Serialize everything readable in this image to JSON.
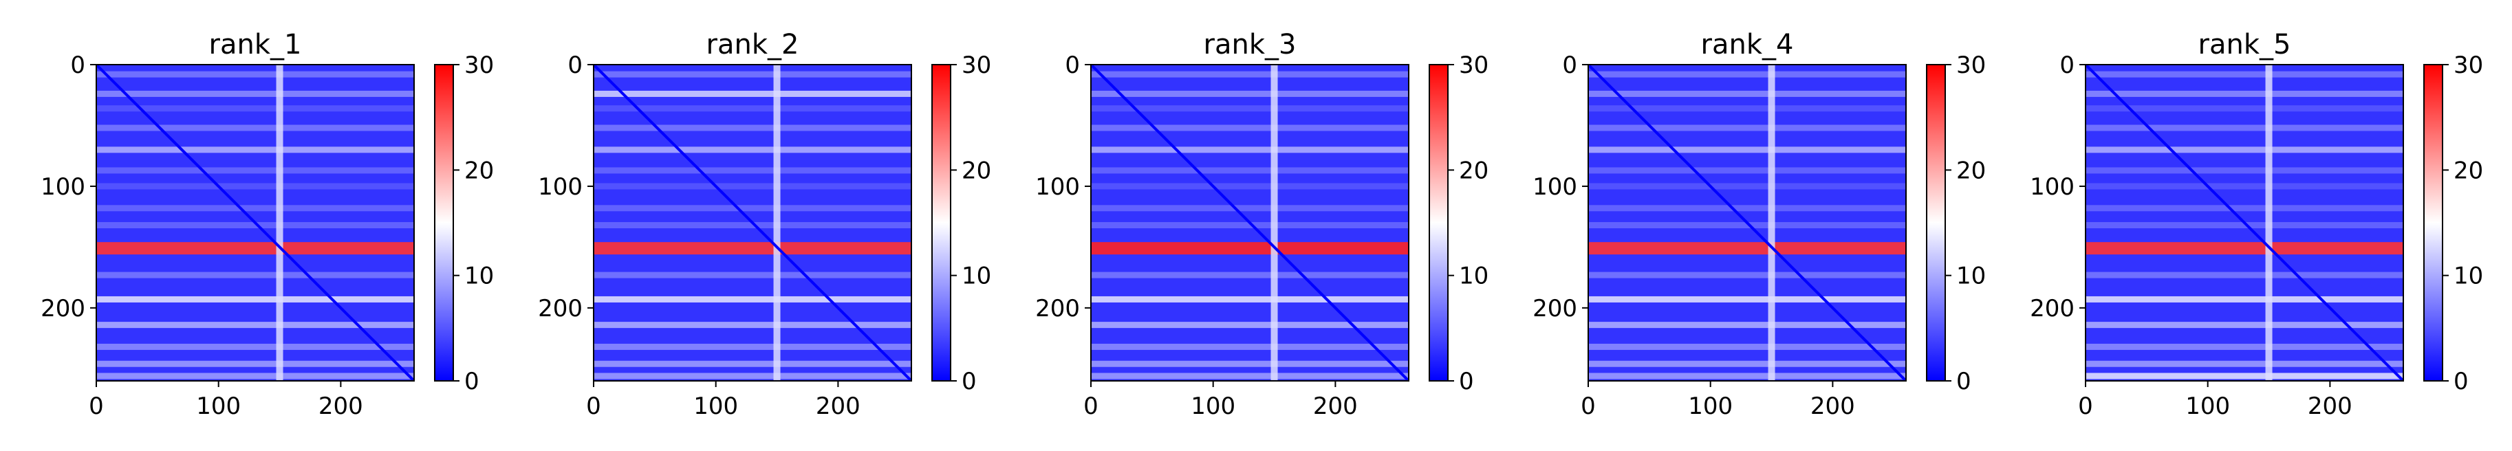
{
  "chart_data": [
    {
      "type": "heatmap",
      "title": "rank_1",
      "xticks": [
        0,
        100,
        200
      ],
      "yticks": [
        0,
        100,
        200
      ],
      "xlim": [
        0,
        260
      ],
      "ylim": [
        260,
        0
      ],
      "colorbar": {
        "ticks": [
          0,
          10,
          20,
          30
        ],
        "range": [
          0,
          30
        ],
        "colormap": "bwr"
      },
      "background_value": 3,
      "diagonal_value": 0,
      "vertical_line": {
        "x": 150,
        "value": 13
      },
      "horizontal_bands": [
        {
          "y": 8,
          "value": 7
        },
        {
          "y": 24,
          "value": 8
        },
        {
          "y": 36,
          "value": 5
        },
        {
          "y": 52,
          "value": 7
        },
        {
          "y": 70,
          "value": 10
        },
        {
          "y": 87,
          "value": 6
        },
        {
          "y": 100,
          "value": 5
        },
        {
          "y": 118,
          "value": 6
        },
        {
          "y": 132,
          "value": 6
        },
        {
          "y": 151,
          "value": 27
        },
        {
          "y": 173,
          "value": 7
        },
        {
          "y": 193,
          "value": 13
        },
        {
          "y": 214,
          "value": 10
        },
        {
          "y": 232,
          "value": 8
        },
        {
          "y": 246,
          "value": 9
        },
        {
          "y": 256,
          "value": 9
        }
      ]
    },
    {
      "type": "heatmap",
      "title": "rank_2",
      "xticks": [
        0,
        100,
        200
      ],
      "yticks": [
        0,
        100,
        200
      ],
      "xlim": [
        0,
        260
      ],
      "ylim": [
        260,
        0
      ],
      "colorbar": {
        "ticks": [
          0,
          10,
          20,
          30
        ],
        "range": [
          0,
          30
        ],
        "colormap": "bwr"
      },
      "background_value": 3,
      "diagonal_value": 0,
      "vertical_line": {
        "x": 150,
        "value": 13
      },
      "horizontal_bands": [
        {
          "y": 8,
          "value": 7
        },
        {
          "y": 24,
          "value": 12
        },
        {
          "y": 36,
          "value": 5
        },
        {
          "y": 52,
          "value": 7
        },
        {
          "y": 70,
          "value": 10
        },
        {
          "y": 87,
          "value": 6
        },
        {
          "y": 100,
          "value": 5
        },
        {
          "y": 118,
          "value": 6
        },
        {
          "y": 132,
          "value": 6
        },
        {
          "y": 151,
          "value": 27
        },
        {
          "y": 173,
          "value": 7
        },
        {
          "y": 193,
          "value": 13
        },
        {
          "y": 214,
          "value": 10
        },
        {
          "y": 232,
          "value": 8
        },
        {
          "y": 246,
          "value": 9
        },
        {
          "y": 256,
          "value": 9
        }
      ]
    },
    {
      "type": "heatmap",
      "title": "rank_3",
      "xticks": [
        0,
        100,
        200
      ],
      "yticks": [
        0,
        100,
        200
      ],
      "xlim": [
        0,
        260
      ],
      "ylim": [
        260,
        0
      ],
      "colorbar": {
        "ticks": [
          0,
          10,
          20,
          30
        ],
        "range": [
          0,
          30
        ],
        "colormap": "bwr"
      },
      "background_value": 3,
      "diagonal_value": 0,
      "vertical_line": {
        "x": 150,
        "value": 13
      },
      "horizontal_bands": [
        {
          "y": 8,
          "value": 7
        },
        {
          "y": 24,
          "value": 8
        },
        {
          "y": 36,
          "value": 5
        },
        {
          "y": 52,
          "value": 7
        },
        {
          "y": 70,
          "value": 10
        },
        {
          "y": 87,
          "value": 6
        },
        {
          "y": 100,
          "value": 5
        },
        {
          "y": 118,
          "value": 6
        },
        {
          "y": 132,
          "value": 6
        },
        {
          "y": 151,
          "value": 28
        },
        {
          "y": 173,
          "value": 7
        },
        {
          "y": 193,
          "value": 13
        },
        {
          "y": 214,
          "value": 10
        },
        {
          "y": 232,
          "value": 8
        },
        {
          "y": 246,
          "value": 9
        },
        {
          "y": 256,
          "value": 9
        }
      ]
    },
    {
      "type": "heatmap",
      "title": "rank_4",
      "xticks": [
        0,
        100,
        200
      ],
      "yticks": [
        0,
        100,
        200
      ],
      "xlim": [
        0,
        260
      ],
      "ylim": [
        260,
        0
      ],
      "colorbar": {
        "ticks": [
          0,
          10,
          20,
          30
        ],
        "range": [
          0,
          30
        ],
        "colormap": "bwr"
      },
      "background_value": 3,
      "diagonal_value": 0,
      "vertical_line": {
        "x": 150,
        "value": 13
      },
      "horizontal_bands": [
        {
          "y": 8,
          "value": 7
        },
        {
          "y": 24,
          "value": 8
        },
        {
          "y": 36,
          "value": 5
        },
        {
          "y": 52,
          "value": 7
        },
        {
          "y": 70,
          "value": 10
        },
        {
          "y": 87,
          "value": 6
        },
        {
          "y": 100,
          "value": 5
        },
        {
          "y": 118,
          "value": 6
        },
        {
          "y": 132,
          "value": 6
        },
        {
          "y": 151,
          "value": 27
        },
        {
          "y": 173,
          "value": 7
        },
        {
          "y": 193,
          "value": 13
        },
        {
          "y": 214,
          "value": 10
        },
        {
          "y": 232,
          "value": 8
        },
        {
          "y": 246,
          "value": 9
        },
        {
          "y": 256,
          "value": 9
        }
      ]
    },
    {
      "type": "heatmap",
      "title": "rank_5",
      "xticks": [
        0,
        100,
        200
      ],
      "yticks": [
        0,
        100,
        200
      ],
      "xlim": [
        0,
        260
      ],
      "ylim": [
        260,
        0
      ],
      "colorbar": {
        "ticks": [
          0,
          10,
          20,
          30
        ],
        "range": [
          0,
          30
        ],
        "colormap": "bwr"
      },
      "background_value": 3,
      "diagonal_value": 0,
      "vertical_line": {
        "x": 150,
        "value": 13
      },
      "horizontal_bands": [
        {
          "y": 8,
          "value": 7
        },
        {
          "y": 24,
          "value": 8
        },
        {
          "y": 36,
          "value": 5
        },
        {
          "y": 52,
          "value": 7
        },
        {
          "y": 70,
          "value": 10
        },
        {
          "y": 87,
          "value": 6
        },
        {
          "y": 100,
          "value": 5
        },
        {
          "y": 118,
          "value": 6
        },
        {
          "y": 132,
          "value": 6
        },
        {
          "y": 151,
          "value": 27
        },
        {
          "y": 173,
          "value": 7
        },
        {
          "y": 193,
          "value": 13
        },
        {
          "y": 214,
          "value": 10
        },
        {
          "y": 232,
          "value": 8
        },
        {
          "y": 246,
          "value": 9
        },
        {
          "y": 256,
          "value": 13
        }
      ]
    }
  ],
  "colors": {
    "low": "#0000ff",
    "mid": "#ffffff",
    "high": "#ff0000"
  }
}
